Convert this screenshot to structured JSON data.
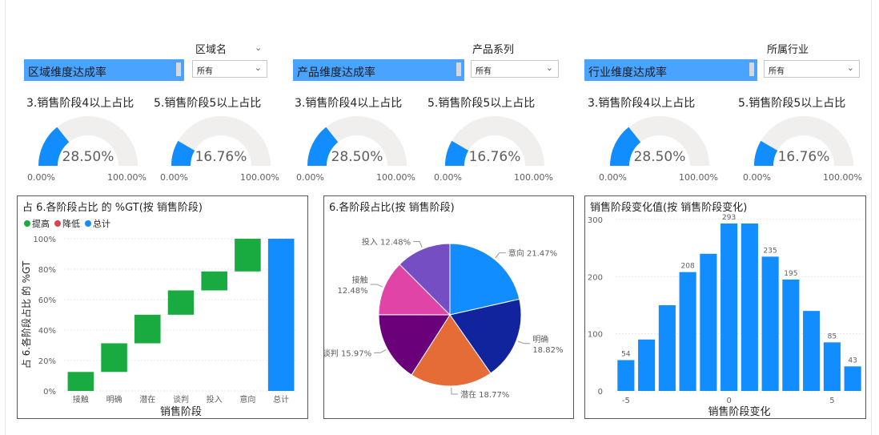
{
  "slicers": [
    {
      "title": "区域名",
      "value": "所有",
      "banner": "区域维度达成率",
      "has_chevron": true
    },
    {
      "title": "产品系列",
      "value": "所有",
      "banner": "产品维度达成率",
      "has_chevron": false
    },
    {
      "title": "所属行业",
      "value": "所有",
      "banner": "行业维度达成率",
      "has_chevron": false
    }
  ],
  "gauges": [
    {
      "title": "3.销售阶段4以上占比",
      "value_label": "28.50%",
      "value": 0.285,
      "min": "0.00%",
      "max": "100.00%"
    },
    {
      "title": "5.销售阶段5以上占比",
      "value_label": "16.76%",
      "value": 0.1676,
      "min": "0.00%",
      "max": "100.00%"
    },
    {
      "title": "3.销售阶段4以上占比",
      "value_label": "28.50%",
      "value": 0.285,
      "min": "0.00%",
      "max": "100.00%"
    },
    {
      "title": "5.销售阶段5以上占比",
      "value_label": "16.76%",
      "value": 0.1676,
      "min": "0.00%",
      "max": "100.00%"
    },
    {
      "title": "3.销售阶段4以上占比",
      "value_label": "28.50%",
      "value": 0.285,
      "min": "0.00%",
      "max": "100.00%"
    },
    {
      "title": "5.销售阶段5以上占比",
      "value_label": "16.76%",
      "value": 0.1676,
      "min": "0.00%",
      "max": "100.00%"
    }
  ],
  "colors": {
    "accent": "#118dff",
    "track": "#f0efee",
    "increase": "#1aab40",
    "decrease": "#d64550",
    "total": "#118dff",
    "banner": "#4aa3ff"
  },
  "chart_data": [
    {
      "type": "bar",
      "subtype": "waterfall",
      "title": "占 6.各阶段占比 的 %GT(按 销售阶段)",
      "xlabel": "销售阶段",
      "ylabel": "占 6.各阶段占比 的 %GT",
      "legend": [
        "提高",
        "降低",
        "总计"
      ],
      "legend_position": "top-left",
      "categories": [
        "接触",
        "明确",
        "潜在",
        "谈判",
        "投入",
        "意向",
        "总计"
      ],
      "values": [
        12.48,
        18.82,
        18.77,
        15.97,
        12.48,
        21.47,
        100
      ],
      "ylim": [
        0,
        100
      ],
      "yticks": [
        "0%",
        "20%",
        "40%",
        "60%",
        "80%",
        "100%"
      ]
    },
    {
      "type": "pie",
      "title": "6.各阶段占比(按 销售阶段)",
      "slices": [
        {
          "label": "意向",
          "value": 21.47,
          "text": "21.47%",
          "color": "#118dff"
        },
        {
          "label": "明确",
          "value": 18.82,
          "text": "18.82%",
          "color": "#12239e"
        },
        {
          "label": "潜在",
          "value": 18.77,
          "text": "18.77%",
          "color": "#e66c37"
        },
        {
          "label": "谈判",
          "value": 15.97,
          "text": "15.97%",
          "color": "#6b007b"
        },
        {
          "label": "接触",
          "value": 12.48,
          "text": "12.48%",
          "color": "#e044a7"
        },
        {
          "label": "投入",
          "value": 12.48,
          "text": "12.48%",
          "color": "#744ec2"
        }
      ]
    },
    {
      "type": "bar",
      "title": "销售阶段变化值(按 销售阶段变化)",
      "xlabel": "销售阶段变化",
      "ylabel": "",
      "x": [
        -5,
        -4,
        -3,
        -2,
        -1,
        0,
        1,
        2,
        3,
        4,
        5,
        6
      ],
      "values": [
        54,
        90,
        150,
        208,
        240,
        293,
        293,
        235,
        195,
        140,
        85,
        43
      ],
      "data_labels": {
        "-5": "54",
        "-2": "208",
        "0": "293",
        "2": "235",
        "3": "195",
        "5": "85",
        "6": "43"
      },
      "ylim": [
        0,
        300
      ],
      "yticks": [
        "0",
        "100",
        "200",
        "300"
      ],
      "xticks": [
        "-5",
        "0",
        "5"
      ],
      "grid": true
    }
  ]
}
